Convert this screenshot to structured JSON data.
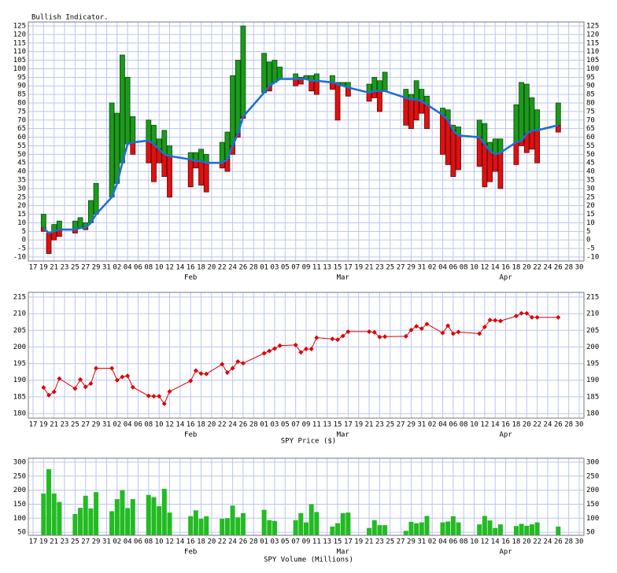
{
  "chart_data": [
    {
      "type": "bar_range",
      "title": "Bullish Indicator.",
      "categories": [
        "17",
        null,
        "19",
        null,
        "21",
        null,
        "23",
        null,
        "25",
        null,
        "27",
        null,
        "29",
        null,
        "31",
        null,
        "02",
        null,
        "04",
        null,
        "06",
        null,
        "08",
        null,
        "10",
        null,
        "12",
        null,
        "14",
        null,
        "16",
        null,
        "18",
        null,
        "20",
        null,
        "22",
        null,
        "24",
        null,
        "26",
        null,
        "28",
        null,
        "01",
        null,
        "03",
        null,
        "05",
        null,
        "07",
        null,
        "09",
        null,
        "11",
        null,
        "13",
        null,
        "15",
        null,
        "17",
        null,
        "19",
        null,
        "21",
        null,
        "23",
        null,
        "25",
        null,
        "27",
        null,
        "29",
        null,
        "31",
        null,
        "02",
        null,
        "04",
        null,
        "06",
        null,
        "08",
        null,
        "10",
        null,
        "12",
        null,
        "14",
        null,
        "16",
        null,
        "18",
        null,
        "20",
        null,
        "22",
        null,
        "24",
        null,
        "26",
        null,
        "28",
        null,
        "30"
      ],
      "month_labels": [
        null,
        null,
        null,
        null,
        null,
        null,
        null,
        null,
        null,
        null,
        null,
        null,
        null,
        null,
        null,
        null,
        null,
        null,
        null,
        null,
        null,
        null,
        null,
        null,
        null,
        null,
        null,
        null,
        null,
        null,
        "Feb",
        null,
        null,
        null,
        null,
        null,
        null,
        null,
        null,
        null,
        null,
        null,
        null,
        null,
        null,
        null,
        null,
        null,
        null,
        null,
        null,
        null,
        null,
        null,
        null,
        null,
        null,
        null,
        null,
        "Mar",
        null,
        null,
        null,
        null,
        null,
        null,
        null,
        null,
        null,
        null,
        null,
        null,
        null,
        null,
        null,
        null,
        null,
        null,
        null,
        null,
        null,
        null,
        null,
        null,
        null,
        null,
        null,
        null,
        null,
        null,
        "Apr",
        null,
        null,
        null,
        null,
        null,
        null,
        null,
        null,
        null,
        null,
        null,
        null,
        null,
        null
      ],
      "high": [
        null,
        null,
        15,
        4,
        9,
        11,
        null,
        null,
        11,
        13,
        10,
        23,
        33,
        null,
        null,
        80,
        74,
        108,
        95,
        72,
        null,
        null,
        70,
        67,
        59,
        64,
        55,
        null,
        null,
        null,
        51,
        51,
        53,
        50,
        null,
        null,
        57,
        63,
        96,
        105,
        125,
        null,
        null,
        null,
        109,
        104,
        105,
        101,
        null,
        null,
        97,
        95,
        96,
        96,
        97,
        null,
        null,
        96,
        92,
        92,
        92,
        null,
        null,
        null,
        91,
        95,
        93,
        98,
        null,
        null,
        null,
        88,
        85,
        93,
        88,
        84,
        null,
        null,
        77,
        76,
        67,
        66,
        null,
        null,
        null,
        70,
        68,
        57,
        59,
        59,
        null,
        null,
        79,
        92,
        91,
        83,
        76,
        null,
        null,
        null,
        80,
        null,
        null,
        null,
        null
      ],
      "line": [
        null,
        null,
        7,
        4,
        5,
        6,
        null,
        null,
        6,
        7,
        7,
        10,
        15,
        null,
        null,
        25,
        33,
        45,
        56,
        57,
        null,
        null,
        58,
        56,
        53,
        50,
        49,
        null,
        null,
        null,
        47,
        46,
        46,
        45,
        null,
        null,
        45,
        47,
        55,
        62,
        72,
        null,
        null,
        null,
        86,
        90,
        92,
        94,
        null,
        null,
        94,
        94,
        94,
        93,
        93,
        null,
        null,
        92,
        91,
        90,
        89,
        null,
        null,
        null,
        86,
        87,
        87,
        87,
        null,
        null,
        null,
        83,
        82,
        82,
        81,
        79,
        null,
        null,
        73,
        70,
        64,
        61,
        null,
        null,
        null,
        60,
        56,
        52,
        50,
        51,
        null,
        null,
        57,
        58,
        62,
        64,
        64,
        null,
        null,
        null,
        67,
        null,
        null,
        null,
        null
      ],
      "low": [
        null,
        null,
        5,
        -8,
        0,
        2,
        null,
        null,
        4,
        7,
        6,
        10,
        15,
        null,
        null,
        25,
        33,
        45,
        56,
        50,
        null,
        null,
        45,
        34,
        45,
        37,
        25,
        null,
        null,
        null,
        31,
        42,
        32,
        28,
        null,
        null,
        42,
        40,
        50,
        60,
        71,
        null,
        null,
        null,
        86,
        87,
        92,
        94,
        null,
        null,
        90,
        91,
        94,
        87,
        85,
        null,
        null,
        88,
        70,
        90,
        84,
        null,
        null,
        null,
        81,
        83,
        75,
        87,
        null,
        null,
        null,
        67,
        65,
        70,
        74,
        65,
        null,
        null,
        50,
        44,
        37,
        41,
        null,
        null,
        null,
        43,
        31,
        34,
        40,
        30,
        null,
        null,
        44,
        55,
        51,
        53,
        45,
        null,
        null,
        null,
        63,
        null,
        null,
        null,
        null
      ],
      "up_color": "#1c9a1c",
      "down_color": "#dd1111",
      "line_color": "#1e6fd6",
      "ylim": [
        -12.3,
        127.3
      ],
      "yticks": [
        -10,
        -5,
        0,
        5,
        10,
        15,
        20,
        25,
        30,
        35,
        40,
        45,
        50,
        55,
        60,
        65,
        70,
        75,
        80,
        85,
        90,
        95,
        100,
        105,
        110,
        115,
        120,
        125
      ],
      "grid": true,
      "mirror_y_labels": true
    },
    {
      "type": "line",
      "title": "SPY Price ($)",
      "values": [
        null,
        null,
        187.8,
        185.5,
        186.5,
        190.5,
        null,
        null,
        187.5,
        190.2,
        188,
        189,
        193.6,
        null,
        null,
        193.6,
        190,
        191,
        191.3,
        187.9,
        null,
        null,
        185.3,
        185.2,
        185.2,
        182.9,
        186.6,
        null,
        null,
        null,
        189.8,
        192.9,
        192,
        191.9,
        null,
        null,
        194.8,
        192.3,
        193.6,
        195.6,
        195.1,
        null,
        null,
        null,
        198.1,
        198.8,
        199.5,
        200.4,
        null,
        null,
        200.6,
        198.4,
        199.4,
        199.4,
        202.8,
        null,
        null,
        202.4,
        202.2,
        203.3,
        204.6,
        null,
        null,
        null,
        204.6,
        204.4,
        203,
        203.1,
        null,
        null,
        null,
        203.2,
        205.1,
        206.2,
        205.5,
        206.9,
        null,
        null,
        204.2,
        206.4,
        204,
        204.5,
        null,
        null,
        null,
        204,
        206,
        208.1,
        208,
        207.8,
        null,
        null,
        209.3,
        210.1,
        210.1,
        208.9,
        208.9,
        null,
        null,
        null,
        208.9,
        null,
        null,
        null,
        null
      ],
      "color": "#dd0000",
      "ylim": [
        178.6,
        216.4
      ],
      "yticks": [
        180,
        185,
        190,
        195,
        200,
        205,
        210,
        215
      ],
      "grid": true,
      "mirror_y_labels": true
    },
    {
      "type": "bar",
      "title": "SPY Volume (Millions)",
      "values": [
        null,
        null,
        188,
        275,
        188,
        158,
        null,
        null,
        115,
        137,
        180,
        135,
        193,
        null,
        null,
        125,
        168,
        200,
        136,
        168,
        null,
        null,
        183,
        175,
        143,
        205,
        120,
        null,
        null,
        null,
        107,
        128,
        98,
        107,
        null,
        null,
        98,
        100,
        145,
        103,
        118,
        null,
        null,
        null,
        130,
        93,
        90,
        null,
        null,
        null,
        93,
        118,
        85,
        150,
        122,
        null,
        null,
        70,
        82,
        118,
        120,
        null,
        null,
        null,
        65,
        93,
        75,
        75,
        null,
        null,
        null,
        55,
        87,
        82,
        85,
        108,
        null,
        null,
        85,
        88,
        107,
        85,
        null,
        null,
        null,
        78,
        108,
        92,
        65,
        78,
        null,
        null,
        72,
        80,
        73,
        78,
        85,
        null,
        null,
        null,
        70,
        null,
        null,
        null,
        null
      ],
      "color": "#22bb22",
      "ylim": [
        39,
        314
      ],
      "yticks": [
        50,
        100,
        150,
        200,
        250,
        300
      ],
      "grid": true,
      "mirror_y_labels": true
    }
  ]
}
